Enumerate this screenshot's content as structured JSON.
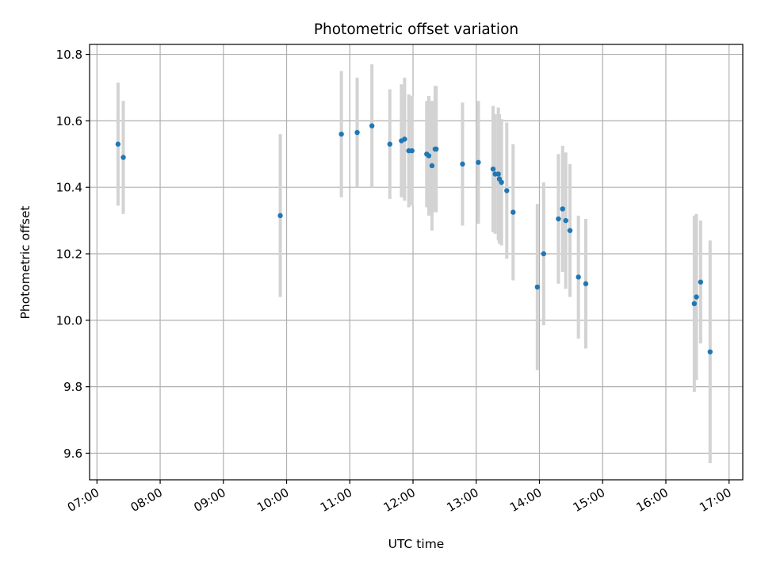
{
  "chart_data": {
    "type": "scatter",
    "title": "Photometric offset variation",
    "xlabel": "UTC time",
    "ylabel": "Photometric offset",
    "xlim": [
      "06:53",
      "17:13"
    ],
    "ylim": [
      9.52,
      10.83
    ],
    "x_ticks": [
      "07:00",
      "08:00",
      "09:00",
      "10:00",
      "11:00",
      "12:00",
      "13:00",
      "14:00",
      "15:00",
      "16:00",
      "17:00"
    ],
    "y_ticks": [
      9.6,
      9.8,
      10.0,
      10.2,
      10.4,
      10.6,
      10.8
    ],
    "grid": true,
    "colors": {
      "point": "#1f77b4",
      "errorbar": "#d3d3d3",
      "grid": "#b0b0b0"
    },
    "series": [
      {
        "points": [
          {
            "x": "07:20",
            "y": 10.53,
            "err": 0.185
          },
          {
            "x": "07:25",
            "y": 10.49,
            "err": 0.17
          },
          {
            "x": "09:54",
            "y": 10.315,
            "err": 0.245
          },
          {
            "x": "10:52",
            "y": 10.56,
            "err": 0.19
          },
          {
            "x": "11:07",
            "y": 10.565,
            "err": 0.165
          },
          {
            "x": "11:21",
            "y": 10.585,
            "err": 0.185
          },
          {
            "x": "11:38",
            "y": 10.53,
            "err": 0.165
          },
          {
            "x": "11:49",
            "y": 10.54,
            "err": 0.17
          },
          {
            "x": "11:52",
            "y": 10.545,
            "err": 0.185
          },
          {
            "x": "11:56",
            "y": 10.51,
            "err": 0.17
          },
          {
            "x": "11:59",
            "y": 10.51,
            "err": 0.165
          },
          {
            "x": "12:13",
            "y": 10.5,
            "err": 0.16
          },
          {
            "x": "12:15",
            "y": 10.495,
            "err": 0.18
          },
          {
            "x": "12:18",
            "y": 10.465,
            "err": 0.195
          },
          {
            "x": "12:21",
            "y": 10.515,
            "err": 0.19
          },
          {
            "x": "12:22",
            "y": 10.515,
            "err": 0.19
          },
          {
            "x": "12:47",
            "y": 10.47,
            "err": 0.185
          },
          {
            "x": "13:02",
            "y": 10.475,
            "err": 0.185
          },
          {
            "x": "13:16",
            "y": 10.455,
            "err": 0.19
          },
          {
            "x": "13:18",
            "y": 10.44,
            "err": 0.18
          },
          {
            "x": "13:21",
            "y": 10.44,
            "err": 0.2
          },
          {
            "x": "13:22",
            "y": 10.425,
            "err": 0.195
          },
          {
            "x": "13:24",
            "y": 10.415,
            "err": 0.19
          },
          {
            "x": "13:29",
            "y": 10.39,
            "err": 0.205
          },
          {
            "x": "13:35",
            "y": 10.325,
            "err": 0.205
          },
          {
            "x": "13:58",
            "y": 10.1,
            "err": 0.25
          },
          {
            "x": "14:04",
            "y": 10.2,
            "err": 0.215
          },
          {
            "x": "14:18",
            "y": 10.305,
            "err": 0.195
          },
          {
            "x": "14:22",
            "y": 10.335,
            "err": 0.19
          },
          {
            "x": "14:25",
            "y": 10.3,
            "err": 0.205
          },
          {
            "x": "14:29",
            "y": 10.27,
            "err": 0.2
          },
          {
            "x": "14:37",
            "y": 10.13,
            "err": 0.185
          },
          {
            "x": "14:44",
            "y": 10.11,
            "err": 0.195
          },
          {
            "x": "16:27",
            "y": 10.05,
            "err": 0.265
          },
          {
            "x": "16:29",
            "y": 10.07,
            "err": 0.25
          },
          {
            "x": "16:33",
            "y": 10.115,
            "err": 0.185
          },
          {
            "x": "16:42",
            "y": 9.905,
            "err": 0.335
          }
        ]
      }
    ]
  }
}
